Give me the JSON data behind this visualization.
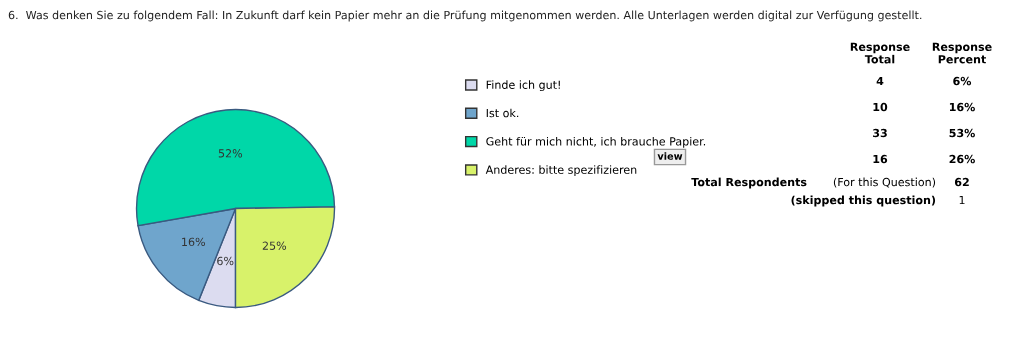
{
  "chart_data": {
    "type": "pie",
    "title": "6.  Was denken Sie zu folgendem Fall: In Zukunft darf kein Papier mehr an die Prüfung mitgenommen werden. Alle Unterlagen werden digital zur Verfügung gestellt.",
    "categories": [
      "Finde ich gut!",
      "Ist ok.",
      "Geht für mich nicht, ich brauche Papier.",
      "Anderes: bitte spezifizieren"
    ],
    "values": [
      6,
      16,
      52,
      25
    ],
    "value_labels": [
      "6%",
      "16%",
      "52%",
      "25%"
    ],
    "colors": [
      "#dcdcf0",
      "#6fa5cc",
      "#00d7a8",
      "#d8f26a"
    ],
    "legend": "right",
    "annotations": [
      "Response\nTotal",
      "Response\nPercent",
      "4",
      "6%",
      "10",
      "16%",
      "33",
      "53%",
      "16",
      "26%",
      "Total Respondents",
      "(For this Question)",
      "62",
      "(skipped this question)",
      "1",
      "view"
    ]
  }
}
